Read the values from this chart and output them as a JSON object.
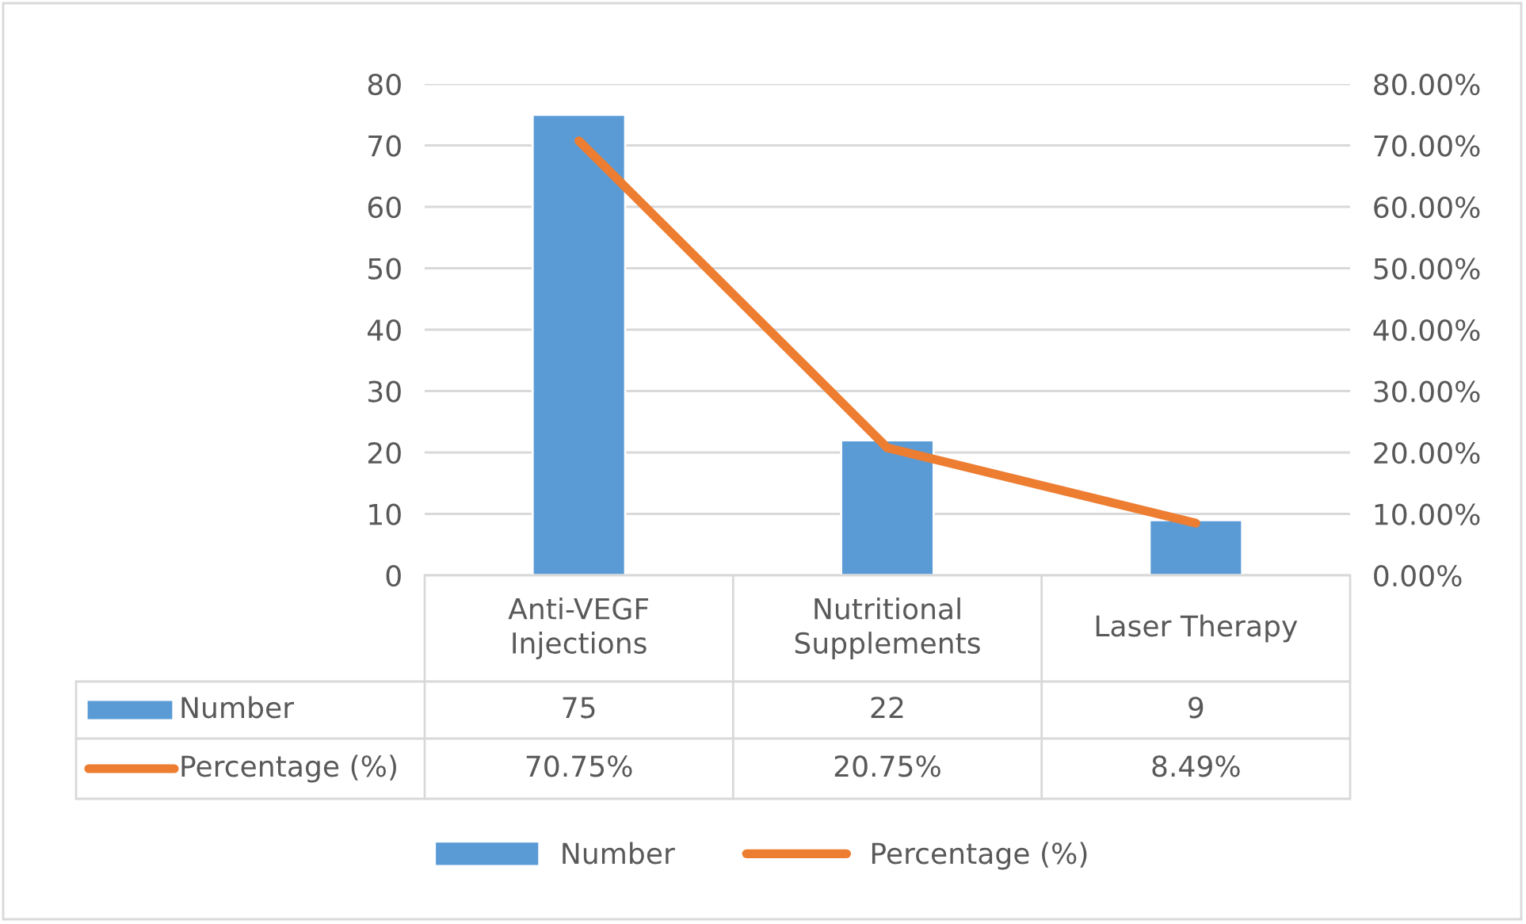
{
  "chart_data": {
    "type": "bar",
    "categories": [
      "Anti-VEGF Injections",
      "Nutritional Supplements",
      "Laser Therapy"
    ],
    "series": [
      {
        "name": "Number",
        "color": "#5b9bd5",
        "values": [
          75,
          22,
          9
        ],
        "value_labels": [
          "75",
          "22",
          "9"
        ]
      },
      {
        "name": "Percentage (%)",
        "type": "line",
        "axis": "y2",
        "color": "#ed7d31",
        "values": [
          70.75,
          20.75,
          8.49
        ],
        "value_labels": [
          "70.75%",
          "20.75%",
          "8.49%"
        ]
      }
    ],
    "ylim": [
      0,
      80
    ],
    "yticks": [
      0,
      10,
      20,
      30,
      40,
      50,
      60,
      70,
      80
    ],
    "y2lim": [
      0,
      80
    ],
    "y2ticks": [
      {
        "value": 0,
        "label": "0.00%"
      },
      {
        "value": 10,
        "label": "10.00%"
      },
      {
        "value": 20,
        "label": "20.00%"
      },
      {
        "value": 30,
        "label": "30.00%"
      },
      {
        "value": 40,
        "label": "40.00%"
      },
      {
        "value": 50,
        "label": "50.00%"
      },
      {
        "value": 60,
        "label": "60.00%"
      },
      {
        "value": 70,
        "label": "70.00%"
      },
      {
        "value": 80,
        "label": "80.00%"
      }
    ],
    "grid": "y",
    "legend": "bottom",
    "marker": "none",
    "line_style": "solid"
  }
}
